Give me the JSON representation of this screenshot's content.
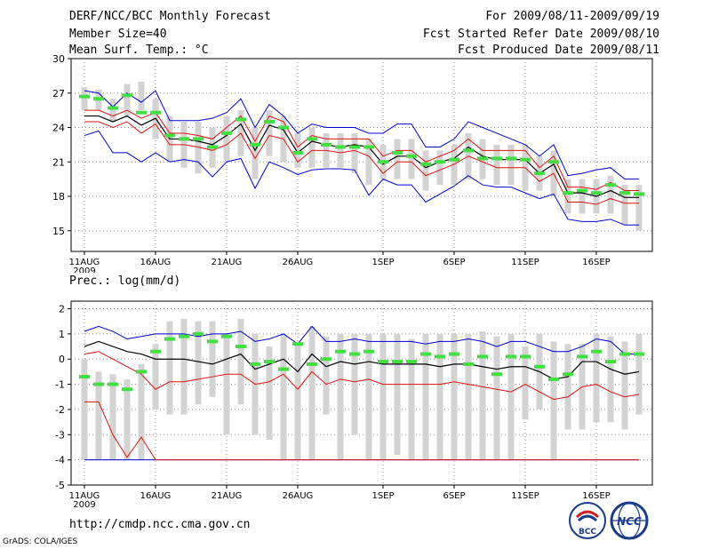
{
  "header": {
    "title": "DERF/NCC/BCC Monthly Forecast",
    "member_size": "Member Size=40",
    "variable": "Mean Surf. Temp.: °C",
    "period": "For 2009/08/11-2009/09/19",
    "fcst_started": "Fcst Started Refer Date 2009/08/10",
    "fcst_produced": "Fcst Produced Date 2009/08/11"
  },
  "footer": {
    "url": "http://cmdp.ncc.cma.gov.cn",
    "grads": "GrADS: COLA/IGES"
  },
  "logos": {
    "bcc": "BCC",
    "ncc": "NCC"
  },
  "colors": {
    "bar": "#d3d3d3",
    "mean": "#000000",
    "inner": "#e01010",
    "outer": "#0000d0",
    "median": "#44dd44"
  },
  "chart_data": [
    {
      "type": "box",
      "title": "Mean Surf. Temp.: °C",
      "ylim": [
        13.2,
        30
      ],
      "yticks": [
        15,
        18,
        21,
        24,
        27,
        30
      ],
      "xticks": [
        {
          "day": 0,
          "label": "11AUG"
        },
        {
          "day": 5,
          "label": "16AUG"
        },
        {
          "day": 10,
          "label": "21AUG"
        },
        {
          "day": 15,
          "label": "26AUG"
        },
        {
          "day": 21,
          "label": "1SEP"
        },
        {
          "day": 26,
          "label": "6SEP"
        },
        {
          "day": 31,
          "label": "11SEP"
        },
        {
          "day": 36,
          "label": "16SEP"
        }
      ],
      "year_label": "2009",
      "bar_top": [
        27.5,
        27.3,
        26.5,
        27.8,
        28.0,
        26.5,
        25.0,
        24.5,
        24.5,
        24.0,
        25.0,
        25.5,
        24.0,
        25.5,
        25.0,
        23.5,
        24.0,
        23.5,
        23.5,
        23.5,
        23.0,
        22.5,
        23.0,
        23.0,
        22.0,
        22.0,
        22.5,
        23.5,
        23.0,
        22.5,
        22.5,
        22.5,
        21.5,
        22.0,
        19.5,
        19.5,
        19.5,
        19.8,
        19.0,
        19.0
      ],
      "bar_bottom": [
        25.5,
        25.5,
        24.5,
        25.0,
        25.5,
        23.0,
        21.0,
        20.5,
        20.0,
        20.5,
        21.0,
        21.5,
        19.5,
        21.5,
        21.0,
        20.5,
        20.5,
        20.5,
        20.5,
        20.0,
        19.0,
        19.5,
        19.5,
        19.5,
        18.5,
        19.0,
        19.0,
        19.5,
        19.5,
        19.0,
        19.0,
        18.5,
        18.5,
        18.0,
        16.5,
        16.5,
        16.5,
        16.5,
        15.5,
        15.0
      ],
      "median": [
        26.7,
        26.5,
        25.7,
        26.8,
        25.3,
        25.3,
        23.3,
        23.0,
        23.0,
        22.3,
        23.5,
        24.7,
        22.5,
        24.5,
        24.0,
        21.8,
        23.0,
        22.5,
        22.3,
        22.3,
        22.3,
        21.0,
        21.8,
        21.5,
        20.8,
        21.0,
        21.2,
        22.0,
        21.3,
        21.3,
        21.3,
        21.2,
        20.0,
        21.0,
        18.3,
        18.5,
        18.3,
        19.0,
        18.3,
        18.2
      ],
      "mean": [
        25.0,
        25.0,
        24.5,
        25.0,
        24.2,
        24.8,
        23.0,
        23.0,
        22.8,
        22.5,
        23.3,
        24.3,
        22.0,
        24.2,
        23.8,
        21.8,
        22.8,
        22.5,
        22.3,
        22.5,
        22.3,
        20.8,
        21.5,
        21.5,
        20.5,
        21.0,
        21.3,
        22.3,
        21.5,
        21.2,
        21.2,
        21.2,
        20.0,
        20.8,
        18.3,
        18.3,
        18.0,
        18.5,
        17.9,
        17.9
      ],
      "inner_upper": [
        25.5,
        25.5,
        25.0,
        25.5,
        24.8,
        25.3,
        23.5,
        23.5,
        23.3,
        23.0,
        24.0,
        25.0,
        22.8,
        25.0,
        24.5,
        22.3,
        23.3,
        23.0,
        23.0,
        23.0,
        23.0,
        21.5,
        22.0,
        22.0,
        21.0,
        21.5,
        22.0,
        23.0,
        22.0,
        22.0,
        22.0,
        22.0,
        20.5,
        21.5,
        18.8,
        18.8,
        18.6,
        19.2,
        18.5,
        18.5
      ],
      "inner_lower": [
        24.5,
        24.5,
        24.0,
        24.5,
        23.5,
        24.3,
        22.5,
        22.5,
        22.3,
        22.0,
        22.5,
        23.5,
        21.3,
        23.3,
        23.0,
        21.0,
        22.0,
        22.0,
        21.8,
        22.0,
        21.5,
        20.0,
        21.0,
        21.0,
        19.8,
        20.3,
        20.8,
        21.5,
        21.0,
        20.5,
        20.5,
        20.5,
        19.3,
        20.0,
        17.5,
        17.5,
        17.3,
        17.8,
        17.4,
        17.4
      ],
      "outer_upper": [
        27.2,
        27.0,
        25.8,
        27.0,
        26.2,
        27.2,
        24.6,
        24.6,
        24.6,
        24.8,
        25.3,
        26.5,
        24.0,
        26.0,
        25.0,
        23.5,
        24.3,
        24.0,
        24.0,
        24.0,
        23.5,
        23.5,
        24.3,
        24.3,
        22.3,
        22.3,
        23.0,
        24.5,
        24.0,
        23.5,
        23.0,
        22.5,
        21.5,
        22.5,
        19.8,
        20.0,
        20.3,
        20.5,
        19.5,
        19.5
      ],
      "outer_lower": [
        23.3,
        23.7,
        21.8,
        21.8,
        21.0,
        21.8,
        21.0,
        21.2,
        21.0,
        19.7,
        21.0,
        21.3,
        18.7,
        21.0,
        20.5,
        19.9,
        20.3,
        20.4,
        20.4,
        20.3,
        18.1,
        19.5,
        19.0,
        19.0,
        17.5,
        18.2,
        18.9,
        19.8,
        19.0,
        18.8,
        18.8,
        18.3,
        17.8,
        18.2,
        16.0,
        15.8,
        15.8,
        16.0,
        15.5,
        15.5
      ]
    },
    {
      "type": "box",
      "title": "Prec.: log(mm/d)",
      "ylim": [
        -5,
        2.3
      ],
      "yticks": [
        -5,
        -4,
        -3,
        -2,
        -1,
        0,
        1,
        2
      ],
      "xticks": [
        {
          "day": 0,
          "label": "11AUG"
        },
        {
          "day": 5,
          "label": "16AUG"
        },
        {
          "day": 10,
          "label": "21AUG"
        },
        {
          "day": 15,
          "label": "26AUG"
        },
        {
          "day": 21,
          "label": "1SEP"
        },
        {
          "day": 26,
          "label": "6SEP"
        },
        {
          "day": 31,
          "label": "11SEP"
        },
        {
          "day": 36,
          "label": "16SEP"
        }
      ],
      "year_label": "2009",
      "bar_top": [
        0.0,
        -0.5,
        -0.6,
        -0.8,
        -0.2,
        0.6,
        1.5,
        1.6,
        1.5,
        1.5,
        1.0,
        1.6,
        1.0,
        0.5,
        1.0,
        0.6,
        1.3,
        0.9,
        1.0,
        1.0,
        1.0,
        1.0,
        1.0,
        0.8,
        1.0,
        1.0,
        1.0,
        1.0,
        1.1,
        0.9,
        1.0,
        0.5,
        1.0,
        0.7,
        0.6,
        0.6,
        1.0,
        0.9,
        0.7,
        1.0
      ],
      "bar_bottom": [
        -4.0,
        -4.0,
        -4.0,
        -4.0,
        -4.0,
        -2.0,
        -2.2,
        -2.2,
        -1.8,
        -1.5,
        -3.0,
        -1.8,
        -3.0,
        -3.2,
        -4.0,
        -4.0,
        -4.0,
        -2.2,
        -4.0,
        -3.0,
        -4.0,
        -4.0,
        -3.8,
        -4.0,
        -4.0,
        -4.0,
        -4.0,
        -4.0,
        -4.0,
        -4.0,
        -4.0,
        -2.4,
        -2.0,
        -4.0,
        -2.8,
        -2.8,
        -2.5,
        -2.5,
        -2.8,
        -2.2
      ],
      "median": [
        -0.7,
        -1.0,
        -1.0,
        -1.2,
        -0.5,
        0.3,
        0.8,
        0.9,
        1.0,
        0.7,
        0.9,
        0.5,
        -0.2,
        -0.1,
        -0.4,
        0.6,
        -0.2,
        0.0,
        0.3,
        0.2,
        0.3,
        -0.1,
        -0.1,
        -0.1,
        0.2,
        0.1,
        0.2,
        -0.2,
        0.1,
        -0.6,
        0.1,
        0.1,
        -0.3,
        -0.8,
        -0.6,
        0.1,
        0.3,
        -0.1,
        0.2,
        0.2
      ],
      "mean": [
        0.5,
        0.7,
        0.5,
        0.3,
        0.2,
        0.0,
        0.0,
        0.0,
        -0.1,
        -0.2,
        0.0,
        0.2,
        -0.4,
        -0.2,
        0.0,
        -0.5,
        0.2,
        -0.3,
        -0.1,
        -0.2,
        -0.1,
        -0.2,
        -0.2,
        -0.2,
        -0.2,
        -0.3,
        -0.2,
        -0.2,
        -0.3,
        -0.4,
        -0.3,
        -0.3,
        -0.5,
        -0.8,
        -0.7,
        -0.1,
        -0.1,
        -0.4,
        -0.6,
        -0.5
      ],
      "inner_upper": [
        0.2,
        0.3,
        0.0,
        -0.3,
        -0.6,
        -1.2,
        -0.9,
        -0.9,
        -0.8,
        -0.7,
        -0.6,
        -0.6,
        -1.0,
        -0.9,
        -0.6,
        -1.2,
        -0.5,
        -1.0,
        -0.8,
        -0.9,
        -0.8,
        -1.0,
        -1.0,
        -1.0,
        -1.0,
        -1.0,
        -0.9,
        -1.0,
        -1.1,
        -1.2,
        -1.3,
        -1.0,
        -1.3,
        -1.6,
        -1.5,
        -1.1,
        -1.0,
        -1.3,
        -1.5,
        -1.4
      ],
      "inner_lower": [
        -1.7,
        -1.7,
        -3.0,
        -3.9,
        -3.1,
        -4.0,
        -4.0,
        -4.0,
        -4.0,
        -4.0,
        -4.0,
        -4.0,
        -4.0,
        -4.0,
        -4.0,
        -4.0,
        -4.0,
        -4.0,
        -4.0,
        -4.0,
        -4.0,
        -4.0,
        -4.0,
        -4.0,
        -4.0,
        -4.0,
        -4.0,
        -4.0,
        -4.0,
        -4.0,
        -4.0,
        -4.0,
        -4.0,
        -4.0,
        -4.0,
        -4.0,
        -4.0,
        -4.0,
        -4.0,
        -4.0
      ],
      "outer_upper": [
        1.1,
        1.3,
        1.1,
        0.8,
        0.9,
        1.0,
        1.0,
        1.0,
        0.9,
        1.0,
        1.0,
        1.1,
        0.7,
        0.8,
        1.0,
        0.6,
        1.3,
        0.7,
        0.7,
        0.8,
        0.7,
        0.7,
        0.7,
        0.7,
        0.6,
        0.7,
        0.7,
        0.8,
        0.7,
        0.5,
        0.7,
        0.7,
        0.5,
        0.3,
        0.3,
        0.5,
        0.8,
        0.7,
        0.2,
        0.2
      ],
      "outer_lower": [
        -4.0,
        -4.0,
        -4.0,
        -4.0,
        -4.0,
        -4.0,
        -4.0,
        -4.0,
        -4.0,
        -4.0,
        -4.0,
        -4.0,
        -4.0,
        -4.0,
        -4.0,
        -4.0,
        -4.0,
        -4.0,
        -4.0,
        -4.0,
        -4.0,
        -4.0,
        -4.0,
        -4.0,
        -4.0,
        -4.0,
        -4.0,
        -4.0,
        -4.0,
        -4.0,
        -4.0,
        -4.0,
        -4.0,
        -4.0,
        -4.0,
        -4.0,
        -4.0,
        -4.0,
        -4.0,
        -4.0
      ]
    }
  ]
}
